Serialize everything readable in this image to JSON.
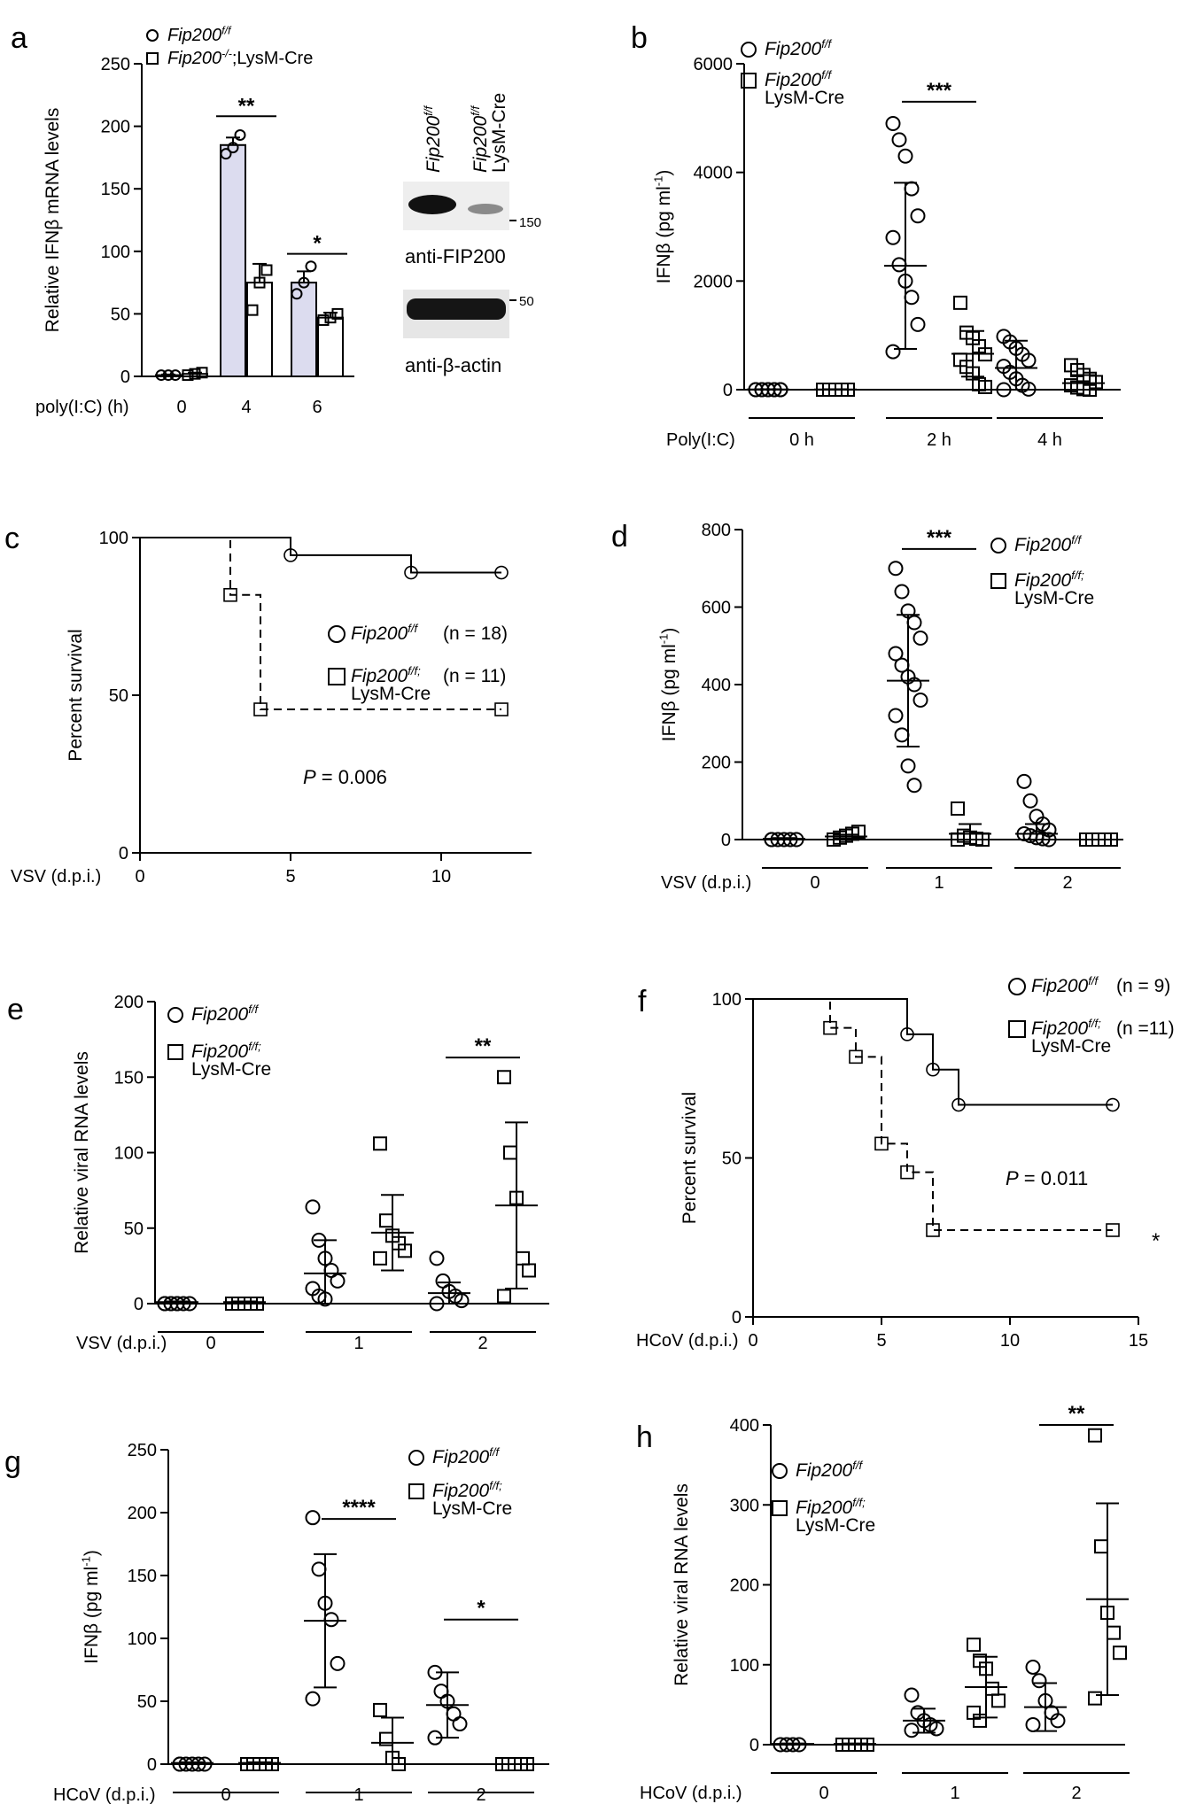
{
  "chart_data": [
    {
      "id": "a",
      "type": "bar",
      "panel_label": "a",
      "ylabel": "Relative IFNβ mRNA levels",
      "xlabel": "poly(I:C) (h)",
      "ylim": [
        0,
        250
      ],
      "yticks": [
        0,
        50,
        100,
        150,
        200,
        250
      ],
      "categories": [
        "0",
        "4",
        "6"
      ],
      "legend": [
        {
          "marker": "circle",
          "main": "Fip200",
          "sup": "f/f",
          "rest": ""
        },
        {
          "marker": "square",
          "main": "Fip200",
          "sup": "-/-",
          "rest": ";LysM-Cre"
        }
      ],
      "series": [
        {
          "marker": "circle",
          "fill": "#dcdcef",
          "means": [
            1,
            185,
            75
          ],
          "errors": [
            0.5,
            6,
            9
          ],
          "points": [
            [
              1,
              1,
              1
            ],
            [
              178,
              183,
              193
            ],
            [
              66,
              75,
              88
            ]
          ]
        },
        {
          "marker": "square",
          "fill": "#ffffff",
          "means": [
            2,
            75,
            47
          ],
          "errors": [
            1,
            15,
            4
          ],
          "points": [
            [
              1,
              2,
              3
            ],
            [
              53,
              75,
              85
            ],
            [
              45,
              47,
              50
            ]
          ]
        }
      ],
      "significance": [
        {
          "label": "**",
          "category": 1,
          "y": 208
        },
        {
          "label": "*",
          "category": 2,
          "y": 98
        }
      ],
      "blot": {
        "lanes": [
          {
            "main": "Fip200",
            "sup": "f/f",
            "second": ""
          },
          {
            "main": "Fip200",
            "sup": "f/f",
            "second": "LysM-Cre"
          }
        ],
        "markers": [
          "150",
          "50"
        ],
        "labels": [
          "anti-FIP200",
          "anti-β-actin"
        ]
      }
    },
    {
      "id": "b",
      "type": "scatter",
      "panel_label": "b",
      "ylabel": "IFNβ (pg ml",
      "ylabel_sup": "-1",
      "ylabel_end": ")",
      "xlabel": "Poly(I:C)",
      "ylim": [
        0,
        6000
      ],
      "yticks": [
        0,
        2000,
        4000,
        6000
      ],
      "groups": [
        "0 h",
        "2 h",
        "4 h"
      ],
      "legend": [
        {
          "marker": "circle",
          "main": "Fip200",
          "sup": "f/f",
          "second": ""
        },
        {
          "marker": "square",
          "main": "Fip200",
          "sup": "f/f",
          "second": "LysM-Cre"
        }
      ],
      "series": [
        {
          "marker": "circle",
          "means": [
            5,
            2280,
            400
          ],
          "sd": [
            3,
            1530,
            500
          ],
          "points": [
            [
              0,
              0,
              0,
              0,
              0,
              0,
              0,
              0,
              0,
              0
            ],
            [
              4900,
              4600,
              4300,
              3700,
              3200,
              2800,
              2300,
              2000,
              1700,
              1200,
              700
            ],
            [
              980,
              880,
              760,
              650,
              540,
              430,
              320,
              200,
              80,
              10,
              0
            ]
          ]
        },
        {
          "marker": "square",
          "means": [
            5,
            660,
            120
          ],
          "sd": [
            3,
            420,
            150
          ],
          "points": [
            [
              0,
              0,
              0,
              0,
              0,
              0,
              0,
              0,
              0,
              0
            ],
            [
              1600,
              1050,
              950,
              800,
              650,
              550,
              420,
              300,
              100,
              50
            ],
            [
              450,
              360,
              270,
              200,
              140,
              80,
              40,
              10,
              0
            ]
          ]
        }
      ],
      "significance": [
        {
          "label": "***",
          "group": 1,
          "y": 5300
        }
      ]
    },
    {
      "id": "c",
      "type": "line",
      "subtype": "survival",
      "panel_label": "c",
      "ylabel": "Percent survival",
      "xlabel": "VSV (d.p.i.)",
      "xlim": [
        0,
        13
      ],
      "xticks": [
        0,
        5,
        10
      ],
      "ylim": [
        0,
        100
      ],
      "yticks": [
        0,
        50,
        100
      ],
      "legend": [
        {
          "marker": "circle",
          "main": "Fip200",
          "sup": "f/f",
          "second": "",
          "n": "(n = 18)"
        },
        {
          "marker": "square",
          "main": "Fip200",
          "sup": "f/f;",
          "second": "LysM-Cre",
          "n": "(n = 11)"
        }
      ],
      "series": [
        {
          "marker": "circle",
          "dash": false,
          "steps": [
            [
              0,
              100
            ],
            [
              5,
              94.4
            ],
            [
              9,
              88.9
            ],
            [
              12,
              88.9
            ]
          ],
          "markers": [
            [
              5,
              94.4
            ],
            [
              9,
              88.9
            ],
            [
              12,
              88.9
            ]
          ]
        },
        {
          "marker": "square",
          "dash": true,
          "steps": [
            [
              0,
              100
            ],
            [
              3,
              81.8
            ],
            [
              4,
              45.5
            ],
            [
              12,
              45.5
            ]
          ],
          "markers": [
            [
              3,
              81.8
            ],
            [
              4,
              45.5
            ],
            [
              12,
              45.5
            ]
          ]
        }
      ],
      "pvalue": {
        "letter": "P",
        "value": " = 0.006"
      }
    },
    {
      "id": "d",
      "type": "scatter",
      "panel_label": "d",
      "ylabel": "IFNβ (pg ml",
      "ylabel_sup": "-1",
      "ylabel_end": ")",
      "xlabel": "VSV (d.p.i.)",
      "ylim": [
        0,
        800
      ],
      "yticks": [
        0,
        200,
        400,
        600,
        800
      ],
      "groups": [
        "0",
        "1",
        "2"
      ],
      "legend": [
        {
          "marker": "circle",
          "main": "Fip200",
          "sup": "f/f",
          "second": ""
        },
        {
          "marker": "square",
          "main": "Fip200",
          "sup": "f/f;",
          "second": "LysM-Cre"
        }
      ],
      "series": [
        {
          "marker": "circle",
          "means": [
            2,
            410,
            15
          ],
          "sd": [
            2,
            170,
            25
          ],
          "points": [
            [
              0,
              0,
              0,
              0,
              0,
              0
            ],
            [
              700,
              640,
              590,
              560,
              520,
              480,
              450,
              420,
              400,
              360,
              320,
              270,
              190,
              140
            ],
            [
              150,
              100,
              60,
              40,
              25,
              15,
              10,
              5,
              2,
              0
            ]
          ]
        },
        {
          "marker": "square",
          "means": [
            8,
            15,
            0
          ],
          "sd": [
            5,
            25,
            0
          ],
          "points": [
            [
              0,
              5,
              10,
              15,
              20
            ],
            [
              80,
              10,
              5,
              2,
              0,
              0
            ],
            [
              0,
              0,
              0,
              0,
              0
            ]
          ]
        }
      ],
      "significance": [
        {
          "label": "***",
          "group": 1,
          "y": 750
        }
      ]
    },
    {
      "id": "e",
      "type": "scatter",
      "panel_label": "e",
      "ylabel": "Relative viral RNA levels",
      "xlabel": "VSV (d.p.i.)",
      "ylim": [
        0,
        200
      ],
      "yticks": [
        0,
        50,
        100,
        150,
        200
      ],
      "groups": [
        "0",
        "1",
        "2"
      ],
      "legend": [
        {
          "marker": "circle",
          "main": "Fip200",
          "sup": "f/f",
          "second": ""
        },
        {
          "marker": "square",
          "main": "Fip200",
          "sup": "f/f;",
          "second": "LysM-Cre"
        }
      ],
      "series": [
        {
          "marker": "circle",
          "means": [
            1,
            20,
            7
          ],
          "sd": [
            0.5,
            22,
            7
          ],
          "points": [
            [
              0,
              0,
              0,
              0,
              0,
              0,
              0,
              0
            ],
            [
              64,
              42,
              30,
              22,
              15,
              10,
              5,
              3
            ],
            [
              30,
              15,
              8,
              5,
              2,
              0
            ]
          ]
        },
        {
          "marker": "square",
          "means": [
            1,
            47,
            65
          ],
          "sd": [
            0.5,
            25,
            55
          ],
          "points": [
            [
              0,
              0,
              0,
              0,
              0,
              0,
              0,
              0
            ],
            [
              106,
              55,
              45,
              40,
              35,
              30
            ],
            [
              150,
              100,
              70,
              30,
              22,
              5
            ]
          ]
        }
      ],
      "significance": [
        {
          "label": "**",
          "group": 2,
          "y": 163
        }
      ]
    },
    {
      "id": "f",
      "type": "line",
      "subtype": "survival",
      "panel_label": "f",
      "ylabel": "Percent survival",
      "xlabel": "HCoV (d.p.i.)",
      "xlim": [
        0,
        15
      ],
      "xticks": [
        0,
        5,
        10,
        15
      ],
      "ylim": [
        0,
        100
      ],
      "yticks": [
        0,
        50,
        100
      ],
      "legend": [
        {
          "marker": "circle",
          "main": "Fip200",
          "sup": "f/f",
          "second": "",
          "n": "(n = 9)"
        },
        {
          "marker": "square",
          "main": "Fip200",
          "sup": "f/f;",
          "second": "LysM-Cre",
          "n": "(n =11)"
        }
      ],
      "series": [
        {
          "marker": "circle",
          "dash": false,
          "steps": [
            [
              0,
              100
            ],
            [
              6,
              88.9
            ],
            [
              7,
              77.8
            ],
            [
              8,
              66.7
            ],
            [
              14,
              66.7
            ]
          ],
          "markers": [
            [
              6,
              88.9
            ],
            [
              7,
              77.8
            ],
            [
              8,
              66.7
            ],
            [
              14,
              66.7
            ]
          ]
        },
        {
          "marker": "square",
          "dash": true,
          "steps": [
            [
              0,
              100
            ],
            [
              3,
              90.9
            ],
            [
              4,
              81.8
            ],
            [
              5,
              54.5
            ],
            [
              6,
              45.5
            ],
            [
              7,
              27.3
            ],
            [
              14,
              27.3
            ]
          ],
          "markers": [
            [
              3,
              90.9
            ],
            [
              4,
              81.8
            ],
            [
              5,
              54.5
            ],
            [
              6,
              45.5
            ],
            [
              7,
              27.3
            ],
            [
              14,
              27.3
            ]
          ]
        }
      ],
      "pvalue": {
        "letter": "P",
        "value": " = 0.011"
      },
      "end_mark": "*"
    },
    {
      "id": "g",
      "type": "scatter",
      "panel_label": "g",
      "ylabel": "IFNβ (pg ml",
      "ylabel_sup": "-1",
      "ylabel_end": ")",
      "xlabel": "HCoV (d.p.i.)",
      "ylim": [
        0,
        250
      ],
      "yticks": [
        0,
        50,
        100,
        150,
        200,
        250
      ],
      "groups": [
        "0",
        "1",
        "2"
      ],
      "legend": [
        {
          "marker": "circle",
          "main": "Fip200",
          "sup": "f/f",
          "second": ""
        },
        {
          "marker": "square",
          "main": "Fip200",
          "sup": "f/f;",
          "second": "LysM-Cre"
        }
      ],
      "series": [
        {
          "marker": "circle",
          "means": [
            1,
            114,
            47
          ],
          "sd": [
            0.5,
            53,
            26
          ],
          "points": [
            [
              0,
              0,
              0,
              0,
              0,
              0
            ],
            [
              196,
              155,
              128,
              115,
              80,
              52
            ],
            [
              73,
              58,
              50,
              40,
              32,
              21
            ]
          ]
        },
        {
          "marker": "square",
          "means": [
            1,
            17,
            0
          ],
          "sd": [
            0.5,
            20,
            0
          ],
          "points": [
            [
              0,
              0,
              0,
              0,
              0,
              0
            ],
            [
              43,
              20,
              5,
              0
            ],
            [
              0,
              0,
              0,
              0,
              0
            ]
          ]
        }
      ],
      "significance": [
        {
          "label": "****",
          "group": 1,
          "y": 195
        },
        {
          "label": "*",
          "group": 2,
          "y": 115
        }
      ]
    },
    {
      "id": "h",
      "type": "scatter",
      "panel_label": "h",
      "ylabel": "Relative viral RNA levels",
      "xlabel": "HCoV (d.p.i.)",
      "ylim": [
        0,
        400
      ],
      "yticks": [
        0,
        100,
        200,
        300,
        400
      ],
      "groups": [
        "0",
        "1",
        "2"
      ],
      "legend": [
        {
          "marker": "circle",
          "main": "Fip200",
          "sup": "f/f",
          "second": ""
        },
        {
          "marker": "square",
          "main": "Fip200",
          "sup": "f/f;",
          "second": "LysM-Cre"
        }
      ],
      "series": [
        {
          "marker": "circle",
          "means": [
            1,
            30,
            47
          ],
          "sd": [
            0.5,
            15,
            30
          ],
          "points": [
            [
              0,
              0,
              0,
              0
            ],
            [
              62,
              40,
              30,
              25,
              20,
              18
            ],
            [
              97,
              80,
              55,
              40,
              30,
              25
            ]
          ]
        },
        {
          "marker": "square",
          "means": [
            1,
            72,
            182
          ],
          "sd": [
            0.5,
            38,
            120
          ],
          "points": [
            [
              0,
              0,
              0,
              0,
              0
            ],
            [
              125,
              105,
              95,
              70,
              55,
              40,
              30
            ],
            [
              387,
              248,
              165,
              140,
              115,
              58
            ]
          ]
        }
      ],
      "significance": [
        {
          "label": "**",
          "group": 2,
          "y": 400
        }
      ]
    }
  ]
}
